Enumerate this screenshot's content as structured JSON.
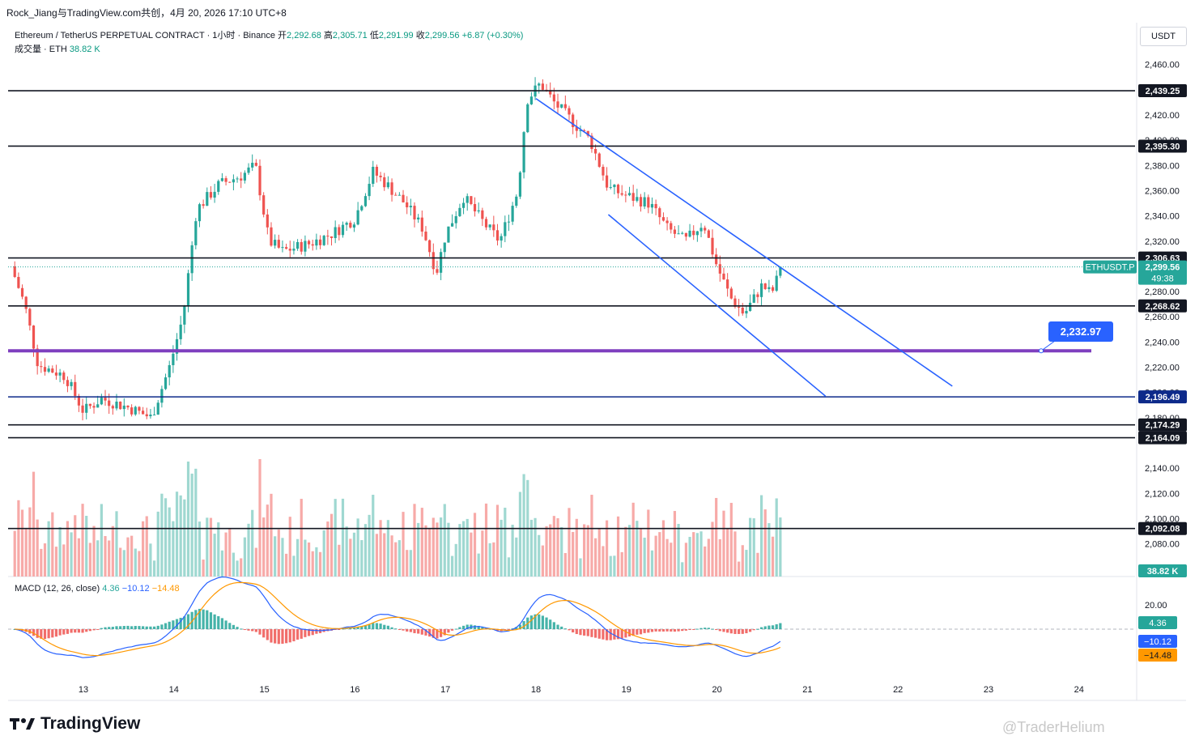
{
  "header": {
    "title": "Rock_Jiang与TradingView.com共创，4月 20, 2026 17:10 UTC+8"
  },
  "legend": {
    "symbol": "Ethereum / TetherUS PERPETUAL CONTRACT · 1小时 · Binance",
    "open_label": "开",
    "open": "2,292.68",
    "high_label": "高",
    "high": "2,305.71",
    "low_label": "低",
    "low": "2,291.99",
    "close_label": "收",
    "close": "2,299.56",
    "change": "+6.87 (+0.30%)",
    "volume_label": "成交量 · ETH",
    "volume": "38.82 K"
  },
  "macd_legend": {
    "label": "MACD (12, 26, close)",
    "hist": "4.36",
    "macd": "−10.12",
    "signal": "−14.48"
  },
  "currency_button": "USDT",
  "brand": "TradingView",
  "watermark": "@TraderHelium",
  "colors": {
    "up": "#26a69a",
    "down": "#ef5350",
    "channel": "#2962ff",
    "support_purple": "#7e3fbf",
    "support_navy": "#0d2a8a",
    "macd_line": "#2962ff",
    "signal_line": "#ff9800"
  },
  "chart_data": {
    "type": "candlestick",
    "symbol": "ETHUSDT.P",
    "interval": "1小时",
    "ylim": [
      2070,
      2470
    ],
    "price_ticks": [
      2460,
      2420,
      2400,
      2380,
      2360,
      2340,
      2320,
      2280,
      2260,
      2240,
      2220,
      2200,
      2180,
      2140,
      2120,
      2100,
      2080
    ],
    "x_ticks": [
      "13",
      "14",
      "15",
      "16",
      "17",
      "18",
      "19",
      "20",
      "21",
      "22",
      "23",
      "24"
    ],
    "horizontal_levels": [
      2439.25,
      2395.3,
      2306.63,
      2268.62,
      2196.49,
      2174.29,
      2164.09,
      2092.08
    ],
    "level_labels": [
      "2,439.25",
      "2,395.30",
      "2,306.63",
      "2,268.62",
      "2,196.49",
      "2,174.29",
      "2,164.09",
      "2,092.08"
    ],
    "target_level": 2232.97,
    "target_label": "2,232.97",
    "last_price": 2299.56,
    "last_price_label": "2,299.56",
    "symbol_tag": "ETHUSDT.P",
    "countdown": "49:38",
    "volume_last": "38.82 K",
    "macd_axis_tick": "20.00",
    "macd_values": {
      "hist": "4.36",
      "macd": "−10.12",
      "signal": "−14.48"
    },
    "descending_channel": {
      "upper": [
        [
          "18",
          2433
        ],
        [
          "22.6",
          2205
        ]
      ],
      "lower": [
        [
          "18.8",
          2341
        ],
        [
          "21.2",
          2197
        ]
      ]
    },
    "price_path": [
      [
        12.2,
        2300
      ],
      [
        12.35,
        2270
      ],
      [
        12.5,
        2222
      ],
      [
        12.8,
        2213
      ],
      [
        13.0,
        2185
      ],
      [
        13.2,
        2195
      ],
      [
        13.5,
        2188
      ],
      [
        13.75,
        2180
      ],
      [
        13.95,
        2220
      ],
      [
        14.1,
        2260
      ],
      [
        14.25,
        2345
      ],
      [
        14.5,
        2365
      ],
      [
        14.75,
        2372
      ],
      [
        14.9,
        2380
      ],
      [
        15.05,
        2320
      ],
      [
        15.2,
        2312
      ],
      [
        15.5,
        2318
      ],
      [
        15.75,
        2326
      ],
      [
        16.0,
        2338
      ],
      [
        16.2,
        2375
      ],
      [
        16.35,
        2365
      ],
      [
        16.55,
        2350
      ],
      [
        16.75,
        2330
      ],
      [
        16.9,
        2295
      ],
      [
        17.0,
        2325
      ],
      [
        17.2,
        2355
      ],
      [
        17.45,
        2332
      ],
      [
        17.6,
        2320
      ],
      [
        17.8,
        2360
      ],
      [
        17.9,
        2432
      ],
      [
        18.05,
        2445
      ],
      [
        18.2,
        2430
      ],
      [
        18.4,
        2415
      ],
      [
        18.6,
        2400
      ],
      [
        18.8,
        2362
      ],
      [
        19.0,
        2356
      ],
      [
        19.25,
        2350
      ],
      [
        19.45,
        2330
      ],
      [
        19.65,
        2320
      ],
      [
        19.85,
        2335
      ],
      [
        20.0,
        2300
      ],
      [
        20.15,
        2275
      ],
      [
        20.3,
        2262
      ],
      [
        20.5,
        2285
      ],
      [
        20.6,
        2278
      ],
      [
        20.72,
        2300
      ]
    ]
  }
}
